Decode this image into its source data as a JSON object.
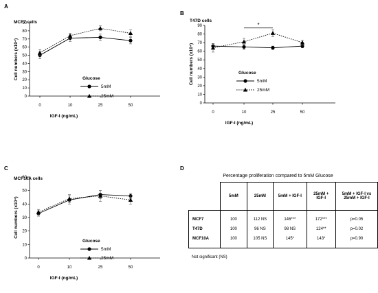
{
  "panels": [
    {
      "letter": "A"
    },
    {
      "letter": "B"
    },
    {
      "letter": "C"
    },
    {
      "letter": "D"
    }
  ],
  "chart_data": [
    {
      "type": "line",
      "title": "MCF7 cells",
      "xlabel": "IGF-I (ng/mL)",
      "ylabel": "Cell numbers (x10⁴)",
      "categories": [
        "0",
        "10",
        "25",
        "50"
      ],
      "ylim": [
        0,
        90
      ],
      "yticks": [
        0,
        10,
        20,
        30,
        40,
        50,
        60,
        70,
        80,
        90
      ],
      "legend_title": "Glucose",
      "legend_position": "center",
      "series": [
        {
          "name": "5mM",
          "marker": "circle",
          "line": "solid",
          "values": [
            50,
            71,
            72,
            68
          ],
          "errors": [
            4,
            4,
            4,
            4
          ]
        },
        {
          "name": "25mM",
          "marker": "triangle",
          "line": "dotted",
          "values": [
            53,
            74,
            83,
            77
          ],
          "errors": [
            4,
            3,
            3,
            4
          ]
        }
      ]
    },
    {
      "type": "line",
      "title": "T47D cells",
      "xlabel": "IGF-I (ng/mL)",
      "ylabel": "Cell numbers (x10⁴)",
      "categories": [
        "0",
        "10",
        "25",
        "50"
      ],
      "ylim": [
        0,
        90
      ],
      "yticks": [
        0,
        10,
        20,
        30,
        40,
        50,
        60,
        70,
        80,
        90
      ],
      "legend_title": "Glucose",
      "legend_position": "center",
      "annotation": {
        "text": "*",
        "from": "10",
        "to": "25",
        "y": 87
      },
      "series": [
        {
          "name": "5mM",
          "marker": "circle",
          "line": "solid",
          "values": [
            66,
            65,
            64,
            66
          ],
          "errors": [
            3,
            3,
            2,
            2
          ]
        },
        {
          "name": "25mM",
          "marker": "triangle",
          "line": "dotted",
          "values": [
            64,
            71,
            81,
            70
          ],
          "errors": [
            5,
            4,
            4,
            3
          ]
        }
      ]
    },
    {
      "type": "line",
      "title": "MCF10A cells",
      "xlabel": "IGF-I (ng/mL)",
      "ylabel": "Cell numbers (x10⁴)",
      "categories": [
        "0",
        "10",
        "25",
        "50"
      ],
      "ylim": [
        0,
        60
      ],
      "yticks": [
        0,
        10,
        20,
        30,
        40,
        50,
        60
      ],
      "legend_title": "Glucose",
      "legend_position": "center",
      "series": [
        {
          "name": "5mM",
          "marker": "circle",
          "line": "solid",
          "values": [
            33,
            43,
            47,
            46
          ],
          "errors": [
            2,
            3,
            3,
            2
          ]
        },
        {
          "name": "25mM",
          "marker": "triangle",
          "line": "dotted",
          "values": [
            34,
            44,
            46,
            43
          ],
          "errors": [
            2,
            3,
            4,
            3
          ]
        }
      ]
    },
    {
      "type": "table",
      "title": "Percentage proliferation compared to 5mM Glucose",
      "columns": [
        "5mM",
        "25mM",
        "5mM + IGF-I",
        "25mM + IGF-I",
        "5mM + IGF-I vs 25mM + IGF-I"
      ],
      "rows": [
        {
          "label": "MCF7",
          "cells": [
            "100",
            "112 NS",
            "146***",
            "172***",
            "p=0.05"
          ]
        },
        {
          "label": "T47D",
          "cells": [
            "100",
            "96 NS",
            "98 NS",
            "124**",
            "p=0.02"
          ]
        },
        {
          "label": "MCF10A",
          "cells": [
            "100",
            "105 NS",
            "145*",
            "143*",
            "p=0.90"
          ]
        }
      ],
      "footnote": "Not significant (NS)"
    }
  ]
}
